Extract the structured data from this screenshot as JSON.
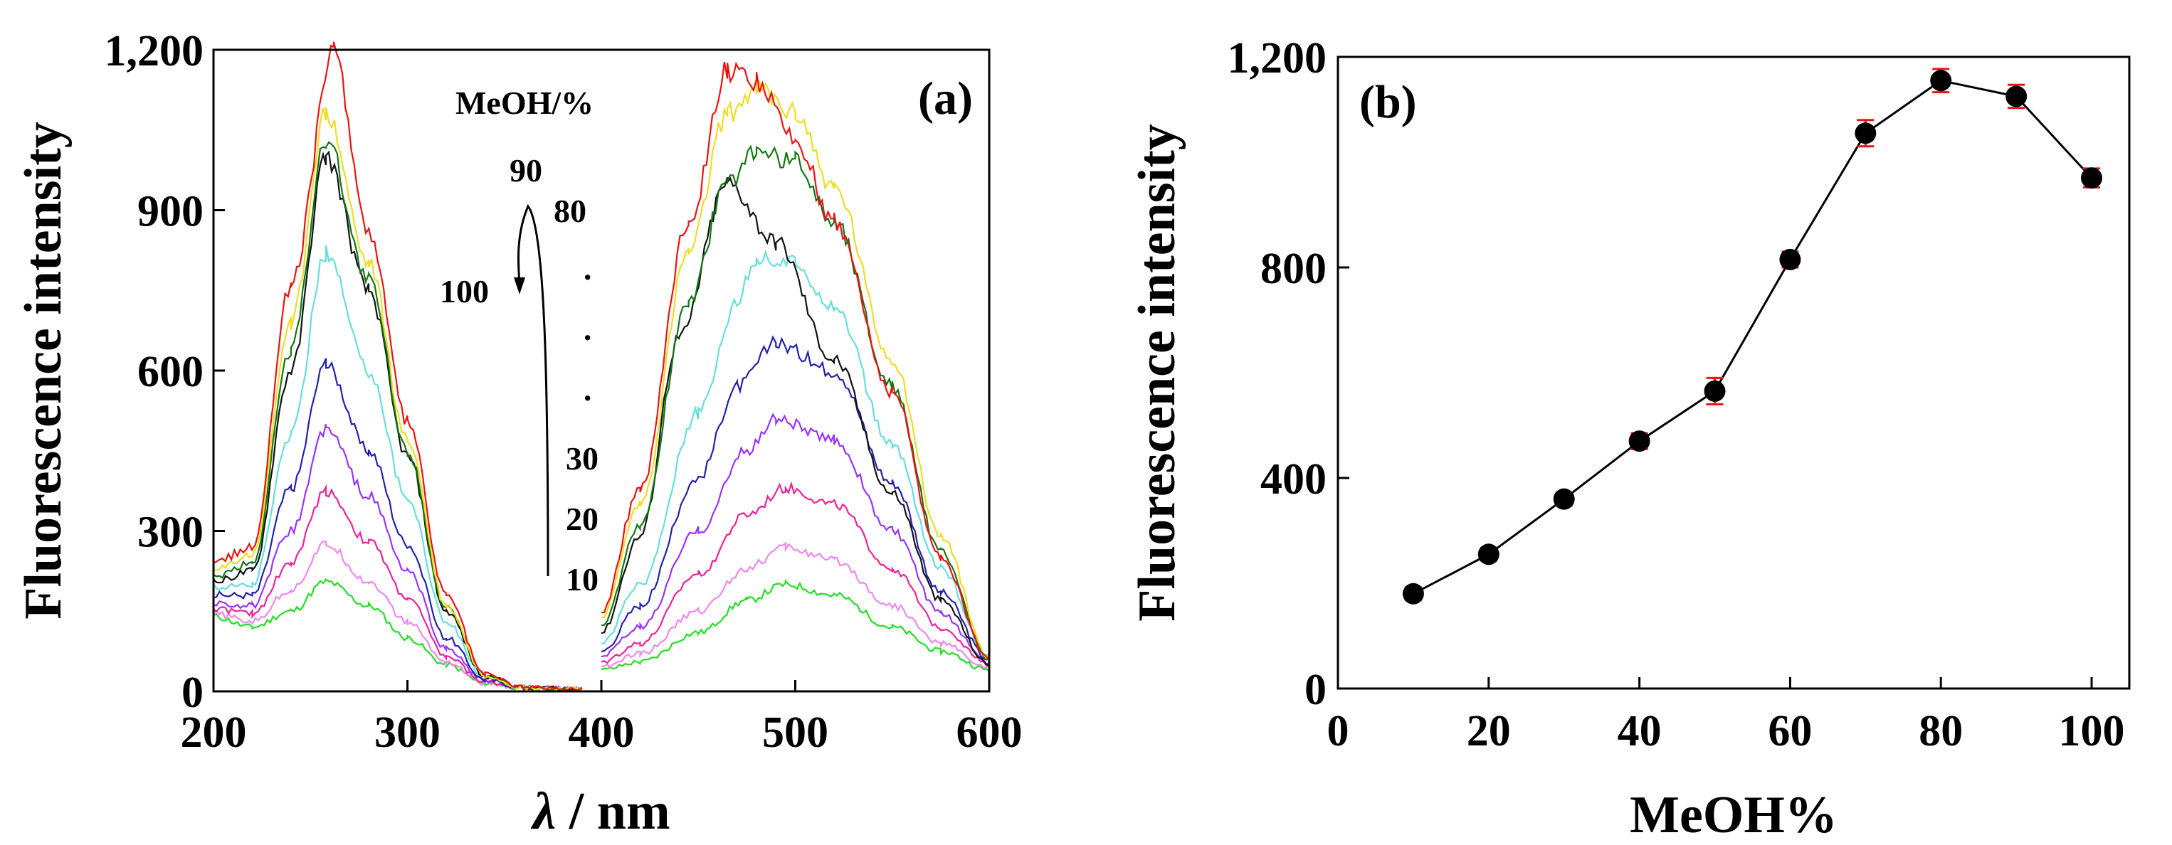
{
  "chart_data": [
    {
      "type": "line",
      "panel_label": "(a)",
      "title": "",
      "xlabel_symbol": "λ",
      "xlabel_unit": " / nm",
      "ylabel": "Fluorescence intensity",
      "xlim": [
        200,
        600
      ],
      "ylim": [
        0,
        1200
      ],
      "x_ticks": [
        "200",
        "300",
        "400",
        "500",
        "600"
      ],
      "y_ticks": [
        "0",
        "300",
        "600",
        "900",
        "1,200"
      ],
      "legend": {
        "title": "MeOH/%",
        "labels": [
          "90",
          "80",
          "100",
          "·",
          "·",
          "·",
          "30",
          "20",
          "10"
        ]
      },
      "series": [
        {
          "name": "10",
          "color": "#22dd22",
          "values": [
            [
              200,
              140
            ],
            [
              220,
              120
            ],
            [
              240,
              150
            ],
            [
              258,
              205
            ],
            [
              280,
              160
            ],
            [
              300,
              100
            ],
            [
              320,
              50
            ],
            [
              340,
              15
            ],
            [
              360,
              6
            ],
            [
              390,
              4
            ],
            [
              400,
              40
            ],
            [
              420,
              55
            ],
            [
              450,
              110
            ],
            [
              475,
              170
            ],
            [
              495,
              200
            ],
            [
              520,
              180
            ],
            [
              550,
              120
            ],
            [
              575,
              75
            ],
            [
              600,
              40
            ]
          ]
        },
        {
          "name": "20",
          "color": "#ee88ee",
          "values": [
            [
              200,
              145
            ],
            [
              220,
              130
            ],
            [
              240,
              190
            ],
            [
              258,
              275
            ],
            [
              280,
              205
            ],
            [
              300,
              130
            ],
            [
              320,
              55
            ],
            [
              340,
              15
            ],
            [
              360,
              6
            ],
            [
              390,
              4
            ],
            [
              400,
              45
            ],
            [
              420,
              70
            ],
            [
              450,
              150
            ],
            [
              475,
              230
            ],
            [
              495,
              270
            ],
            [
              520,
              245
            ],
            [
              550,
              160
            ],
            [
              575,
              90
            ],
            [
              600,
              45
            ]
          ]
        },
        {
          "name": "30",
          "color": "#ee2299",
          "values": [
            [
              200,
              155
            ],
            [
              220,
              145
            ],
            [
              240,
              240
            ],
            [
              258,
              375
            ],
            [
              280,
              280
            ],
            [
              300,
              175
            ],
            [
              320,
              65
            ],
            [
              340,
              18
            ],
            [
              360,
              7
            ],
            [
              390,
              4
            ],
            [
              400,
              55
            ],
            [
              420,
              90
            ],
            [
              450,
              220
            ],
            [
              475,
              330
            ],
            [
              495,
              380
            ],
            [
              520,
              350
            ],
            [
              550,
              230
            ],
            [
              575,
              120
            ],
            [
              600,
              50
            ]
          ]
        },
        {
          "name": "40",
          "color": "#9933ff",
          "values": [
            [
              200,
              165
            ],
            [
              220,
              160
            ],
            [
              240,
              300
            ],
            [
              258,
              490
            ],
            [
              280,
              365
            ],
            [
              300,
              225
            ],
            [
              320,
              80
            ],
            [
              340,
              20
            ],
            [
              360,
              7
            ],
            [
              390,
              4
            ],
            [
              400,
              65
            ],
            [
              420,
              120
            ],
            [
              450,
              300
            ],
            [
              475,
              450
            ],
            [
              490,
              510
            ],
            [
              520,
              470
            ],
            [
              550,
              300
            ],
            [
              575,
              145
            ],
            [
              600,
              55
            ]
          ]
        },
        {
          "name": "50",
          "color": "#2222aa",
          "values": [
            [
              200,
              180
            ],
            [
              220,
              180
            ],
            [
              240,
              380
            ],
            [
              258,
              610
            ],
            [
              280,
              450
            ],
            [
              300,
              275
            ],
            [
              320,
              100
            ],
            [
              340,
              22
            ],
            [
              360,
              7
            ],
            [
              390,
              4
            ],
            [
              400,
              75
            ],
            [
              420,
              160
            ],
            [
              450,
              400
            ],
            [
              470,
              570
            ],
            [
              490,
              650
            ],
            [
              520,
              600
            ],
            [
              550,
              390
            ],
            [
              575,
              185
            ],
            [
              600,
              60
            ]
          ]
        },
        {
          "name": "60",
          "color": "#66dddd",
          "values": [
            [
              200,
              195
            ],
            [
              220,
              200
            ],
            [
              240,
              480
            ],
            [
              258,
              820
            ],
            [
              280,
              600
            ],
            [
              300,
              360
            ],
            [
              320,
              130
            ],
            [
              340,
              25
            ],
            [
              360,
              7
            ],
            [
              390,
              4
            ],
            [
              400,
              90
            ],
            [
              420,
              200
            ],
            [
              450,
              520
            ],
            [
              470,
              730
            ],
            [
              480,
              810
            ],
            [
              500,
              800
            ],
            [
              520,
              720
            ],
            [
              550,
              460
            ],
            [
              575,
              230
            ],
            [
              600,
              65
            ]
          ]
        },
        {
          "name": "70",
          "color": "#111111",
          "values": [
            [
              200,
              205
            ],
            [
              220,
              225
            ],
            [
              240,
              600
            ],
            [
              258,
              1000
            ],
            [
              280,
              750
            ],
            [
              300,
              440
            ],
            [
              320,
              150
            ],
            [
              340,
              28
            ],
            [
              360,
              7
            ],
            [
              390,
              4
            ],
            [
              400,
              110
            ],
            [
              420,
              290
            ],
            [
              440,
              660
            ],
            [
              465,
              950
            ],
            [
              490,
              840
            ],
            [
              520,
              620
            ],
            [
              550,
              370
            ],
            [
              575,
              170
            ],
            [
              600,
              50
            ]
          ]
        },
        {
          "name": "100",
          "color": "#117711",
          "values": [
            [
              200,
              215
            ],
            [
              220,
              240
            ],
            [
              240,
              640
            ],
            [
              258,
              1030
            ],
            [
              280,
              770
            ],
            [
              300,
              450
            ],
            [
              320,
              155
            ],
            [
              340,
              28
            ],
            [
              360,
              7
            ],
            [
              390,
              4
            ],
            [
              400,
              125
            ],
            [
              420,
              310
            ],
            [
              445,
              730
            ],
            [
              465,
              950
            ],
            [
              480,
              1010
            ],
            [
              500,
              990
            ],
            [
              520,
              880
            ],
            [
              550,
              570
            ],
            [
              575,
              260
            ],
            [
              600,
              60
            ]
          ]
        },
        {
          "name": "90",
          "color": "#eedd22",
          "values": [
            [
              200,
              225
            ],
            [
              220,
              255
            ],
            [
              240,
              690
            ],
            [
              258,
              1080
            ],
            [
              280,
              800
            ],
            [
              300,
              470
            ],
            [
              320,
              160
            ],
            [
              340,
              30
            ],
            [
              360,
              7
            ],
            [
              390,
              4
            ],
            [
              400,
              140
            ],
            [
              420,
              350
            ],
            [
              445,
              820
            ],
            [
              465,
              1080
            ],
            [
              480,
              1125
            ],
            [
              500,
              1080
            ],
            [
              520,
              940
            ],
            [
              550,
              620
            ],
            [
              575,
              290
            ],
            [
              600,
              65
            ]
          ]
        },
        {
          "name": "80",
          "color": "#ee1111",
          "values": [
            [
              200,
              240
            ],
            [
              220,
              270
            ],
            [
              240,
              760
            ],
            [
              262,
              1195
            ],
            [
              280,
              860
            ],
            [
              300,
              505
            ],
            [
              320,
              180
            ],
            [
              340,
              32
            ],
            [
              360,
              8
            ],
            [
              390,
              4
            ],
            [
              400,
              150
            ],
            [
              420,
              380
            ],
            [
              445,
              880
            ],
            [
              465,
              1160
            ],
            [
              480,
              1140
            ],
            [
              500,
              1030
            ],
            [
              520,
              880
            ],
            [
              550,
              560
            ],
            [
              575,
              250
            ],
            [
              600,
              60
            ]
          ]
        }
      ]
    },
    {
      "type": "line",
      "panel_label": "(b)",
      "title": "",
      "xlabel": "MeOH%",
      "ylabel": "Fluorescence intensity",
      "xlim": [
        0,
        105
      ],
      "ylim": [
        0,
        1200
      ],
      "x_ticks": [
        "0",
        "20",
        "40",
        "60",
        "80",
        "100"
      ],
      "y_ticks": [
        "0",
        "400",
        "800",
        "1,200"
      ],
      "marker_color": "#000000",
      "errorbar_color": "#ee1111",
      "x": [
        10,
        20,
        30,
        40,
        50,
        60,
        70,
        80,
        90,
        100
      ],
      "y": [
        180,
        255,
        360,
        470,
        565,
        815,
        1055,
        1155,
        1125,
        970
      ],
      "error": [
        12,
        12,
        12,
        15,
        25,
        15,
        25,
        22,
        22,
        18
      ]
    }
  ]
}
